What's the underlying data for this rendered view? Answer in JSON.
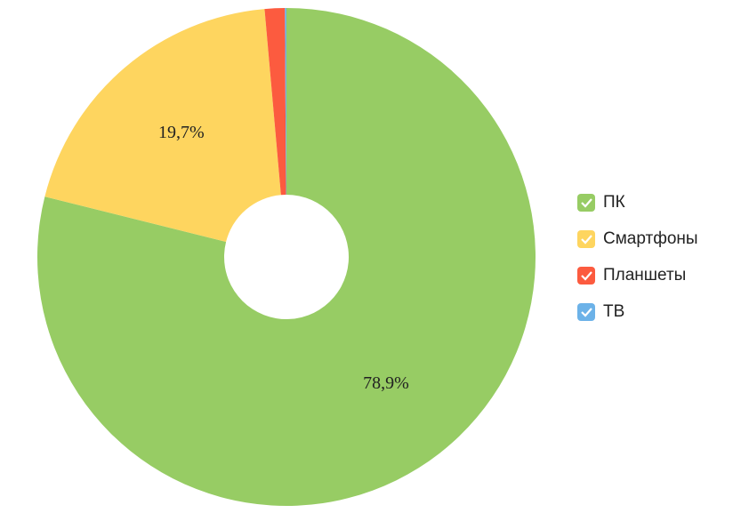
{
  "chart_data": {
    "type": "pie",
    "donut": true,
    "categories": [
      "ПК",
      "Смартфоны",
      "Планшеты",
      "ТВ"
    ],
    "series": [
      {
        "values": [
          78.9,
          19.7,
          1.3,
          0.1
        ],
        "value_labels": [
          "78,9%",
          "19,7%",
          null,
          null
        ],
        "colors": [
          "#97cc64",
          "#fed55f",
          "#fc5b3f",
          "#6cb2e8"
        ]
      }
    ],
    "legend": "right"
  }
}
